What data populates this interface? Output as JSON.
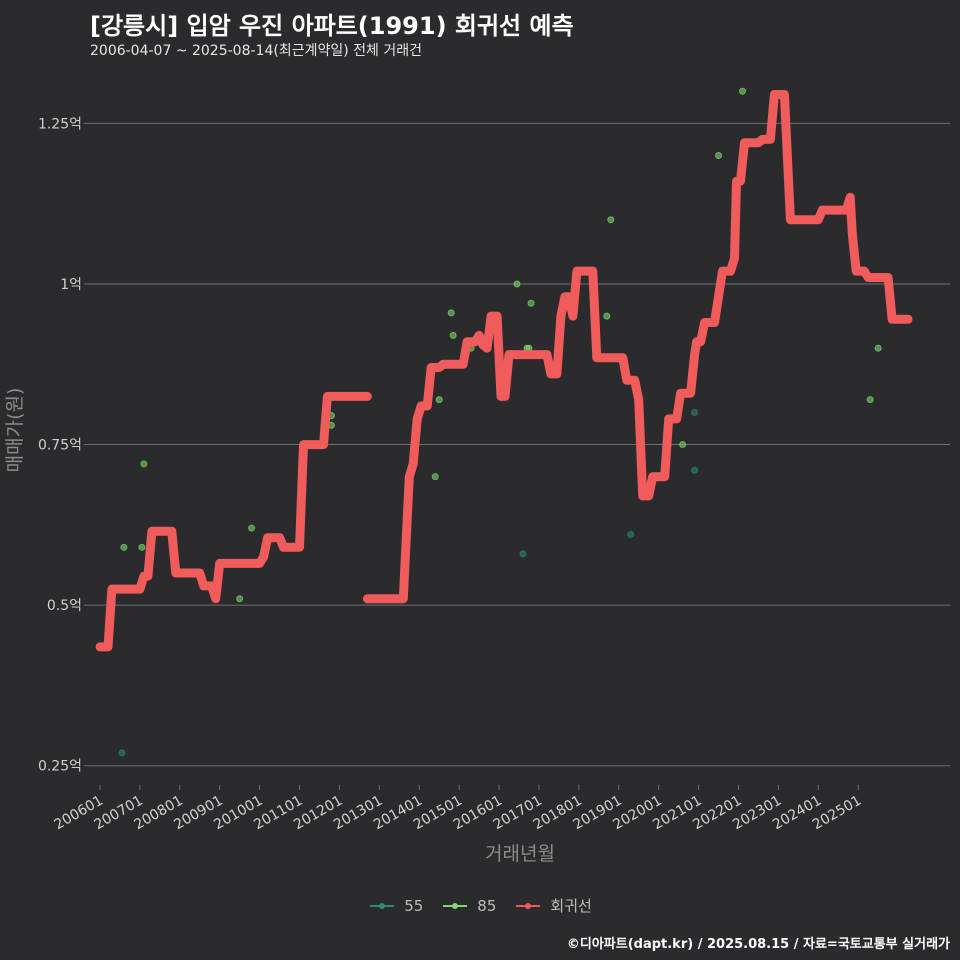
{
  "header": {
    "title": "[강릉시] 입암 우진 아파트(1991) 회귀선 예측",
    "subtitle": "2006-04-07 ~ 2025-08-14(최근계약일) 전체 거래건"
  },
  "footer": {
    "credit": "©디아파트(dapt.kr) / 2025.08.15 / 자료=국토교통부 실거래가"
  },
  "colors": {
    "background": "#2b2b2d",
    "grid": "#707070",
    "s55": "#2a8a7e",
    "s85": "#7ddc6e",
    "regression": "#f05b5b"
  },
  "chart_data": {
    "type": "scatter",
    "title": "[강릉시] 입암 우진 아파트(1991) 회귀선 예측",
    "xlabel": "거래년월",
    "ylabel": "매매가(원)",
    "ylim": [
      0.22,
      1.33
    ],
    "xlim": [
      2005.7,
      2027.3
    ],
    "y_ticks": [
      {
        "value": 0.25,
        "label": "0.25억"
      },
      {
        "value": 0.5,
        "label": "0.5억"
      },
      {
        "value": 0.75,
        "label": "0.75억"
      },
      {
        "value": 1.0,
        "label": "1억"
      },
      {
        "value": 1.25,
        "label": "1.25억"
      }
    ],
    "x_ticks": [
      {
        "value": 2006.0,
        "label": "200601"
      },
      {
        "value": 2007.0,
        "label": "200701"
      },
      {
        "value": 2008.0,
        "label": "200801"
      },
      {
        "value": 2009.0,
        "label": "200901"
      },
      {
        "value": 2010.0,
        "label": "201001"
      },
      {
        "value": 2011.0,
        "label": "201101"
      },
      {
        "value": 2012.0,
        "label": "201201"
      },
      {
        "value": 2013.0,
        "label": "201301"
      },
      {
        "value": 2014.0,
        "label": "201401"
      },
      {
        "value": 2015.0,
        "label": "201501"
      },
      {
        "value": 2016.0,
        "label": "201601"
      },
      {
        "value": 2017.0,
        "label": "201701"
      },
      {
        "value": 2018.0,
        "label": "201801"
      },
      {
        "value": 2019.0,
        "label": "201901"
      },
      {
        "value": 2020.0,
        "label": "202001"
      },
      {
        "value": 2021.0,
        "label": "202101"
      },
      {
        "value": 2022.0,
        "label": "202201"
      },
      {
        "value": 2023.0,
        "label": "202301"
      },
      {
        "value": 2024.0,
        "label": "202401"
      },
      {
        "value": 2025.0,
        "label": "202501"
      }
    ],
    "legend": [
      {
        "key": "s55",
        "label": "55",
        "type": "point-line"
      },
      {
        "key": "s85",
        "label": "85",
        "type": "point-line"
      },
      {
        "key": "regression",
        "label": "회귀선",
        "type": "line"
      }
    ],
    "series": [
      {
        "name": "55",
        "points": [
          [
            2006.55,
            0.27
          ],
          [
            2016.6,
            0.58
          ],
          [
            2019.3,
            0.61
          ],
          [
            2020.9,
            0.71
          ],
          [
            2020.9,
            0.8
          ]
        ]
      },
      {
        "name": "85",
        "points": [
          [
            2006.6,
            0.59
          ],
          [
            2007.1,
            0.72
          ],
          [
            2007.05,
            0.59
          ],
          [
            2009.5,
            0.51
          ],
          [
            2009.8,
            0.62
          ],
          [
            2011.8,
            0.795
          ],
          [
            2011.8,
            0.78
          ],
          [
            2014.4,
            0.7
          ],
          [
            2014.5,
            0.82
          ],
          [
            2014.8,
            0.955
          ],
          [
            2014.85,
            0.92
          ],
          [
            2015.3,
            0.9
          ],
          [
            2016.45,
            1.0
          ],
          [
            2016.7,
            0.9
          ],
          [
            2016.75,
            0.9
          ],
          [
            2016.8,
            0.97
          ],
          [
            2018.7,
            0.95
          ],
          [
            2018.8,
            1.1
          ],
          [
            2020.6,
            0.75
          ],
          [
            2021.1,
            0.92
          ],
          [
            2021.5,
            1.2
          ],
          [
            2022.1,
            1.3
          ],
          [
            2025.3,
            0.82
          ],
          [
            2025.5,
            0.9
          ]
        ]
      },
      {
        "name": "회귀선",
        "segments": [
          [
            [
              2006.0,
              0.435
            ],
            [
              2006.2,
              0.435
            ],
            [
              2006.3,
              0.525
            ],
            [
              2007.0,
              0.525
            ],
            [
              2007.1,
              0.545
            ],
            [
              2007.2,
              0.545
            ],
            [
              2007.3,
              0.615
            ],
            [
              2007.8,
              0.615
            ],
            [
              2007.9,
              0.55
            ],
            [
              2008.5,
              0.55
            ],
            [
              2008.6,
              0.53
            ],
            [
              2008.8,
              0.53
            ],
            [
              2008.9,
              0.51
            ],
            [
              2009.0,
              0.565
            ],
            [
              2010.0,
              0.565
            ],
            [
              2010.1,
              0.575
            ],
            [
              2010.2,
              0.605
            ],
            [
              2010.5,
              0.605
            ],
            [
              2010.6,
              0.59
            ],
            [
              2011.0,
              0.59
            ],
            [
              2011.1,
              0.75
            ],
            [
              2011.6,
              0.75
            ],
            [
              2011.7,
              0.825
            ],
            [
              2012.7,
              0.825
            ]
          ],
          [
            [
              2012.7,
              0.51
            ],
            [
              2013.6,
              0.51
            ],
            [
              2013.75,
              0.7
            ],
            [
              2013.85,
              0.72
            ],
            [
              2013.95,
              0.79
            ],
            [
              2014.05,
              0.81
            ],
            [
              2014.2,
              0.81
            ],
            [
              2014.3,
              0.87
            ],
            [
              2014.5,
              0.87
            ],
            [
              2014.6,
              0.875
            ],
            [
              2015.1,
              0.875
            ],
            [
              2015.2,
              0.91
            ],
            [
              2015.4,
              0.91
            ],
            [
              2015.5,
              0.92
            ],
            [
              2015.6,
              0.905
            ],
            [
              2015.7,
              0.9
            ],
            [
              2015.8,
              0.95
            ],
            [
              2015.95,
              0.95
            ],
            [
              2016.05,
              0.825
            ],
            [
              2016.15,
              0.825
            ],
            [
              2016.25,
              0.89
            ],
            [
              2017.2,
              0.89
            ],
            [
              2017.3,
              0.86
            ],
            [
              2017.45,
              0.86
            ],
            [
              2017.55,
              0.95
            ],
            [
              2017.65,
              0.98
            ],
            [
              2017.75,
              0.98
            ],
            [
              2017.85,
              0.95
            ],
            [
              2017.95,
              1.02
            ],
            [
              2018.35,
              1.02
            ],
            [
              2018.45,
              0.885
            ],
            [
              2019.1,
              0.885
            ],
            [
              2019.2,
              0.85
            ],
            [
              2019.4,
              0.85
            ],
            [
              2019.5,
              0.82
            ],
            [
              2019.6,
              0.67
            ],
            [
              2019.75,
              0.67
            ],
            [
              2019.85,
              0.7
            ],
            [
              2020.15,
              0.7
            ],
            [
              2020.25,
              0.79
            ],
            [
              2020.45,
              0.79
            ],
            [
              2020.55,
              0.83
            ],
            [
              2020.8,
              0.83
            ],
            [
              2020.9,
              0.89
            ],
            [
              2020.95,
              0.91
            ],
            [
              2021.05,
              0.91
            ],
            [
              2021.15,
              0.94
            ],
            [
              2021.4,
              0.94
            ],
            [
              2021.5,
              0.98
            ],
            [
              2021.6,
              1.02
            ],
            [
              2021.8,
              1.02
            ],
            [
              2021.9,
              1.04
            ],
            [
              2021.95,
              1.16
            ],
            [
              2022.05,
              1.16
            ],
            [
              2022.15,
              1.22
            ],
            [
              2022.5,
              1.22
            ],
            [
              2022.6,
              1.225
            ],
            [
              2022.8,
              1.225
            ],
            [
              2022.9,
              1.295
            ],
            [
              2023.15,
              1.295
            ],
            [
              2023.3,
              1.1
            ],
            [
              2024.0,
              1.1
            ],
            [
              2024.1,
              1.115
            ],
            [
              2024.7,
              1.115
            ],
            [
              2024.8,
              1.135
            ],
            [
              2024.85,
              1.08
            ],
            [
              2024.95,
              1.02
            ],
            [
              2025.15,
              1.02
            ],
            [
              2025.25,
              1.01
            ],
            [
              2025.75,
              1.01
            ],
            [
              2025.85,
              0.945
            ],
            [
              2026.25,
              0.945
            ]
          ]
        ]
      }
    ]
  }
}
